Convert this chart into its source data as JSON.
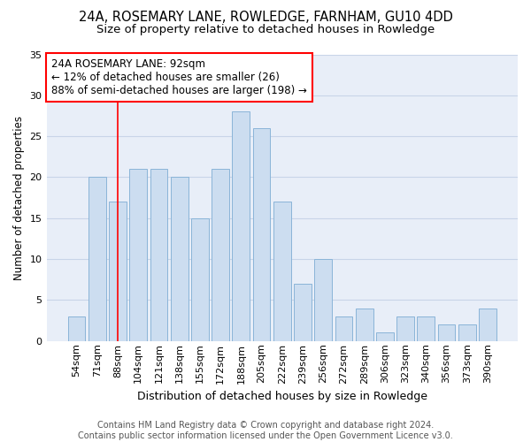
{
  "title1": "24A, ROSEMARY LANE, ROWLEDGE, FARNHAM, GU10 4DD",
  "title2": "Size of property relative to detached houses in Rowledge",
  "xlabel": "Distribution of detached houses by size in Rowledge",
  "ylabel": "Number of detached properties",
  "categories": [
    "54sqm",
    "71sqm",
    "88sqm",
    "104sqm",
    "121sqm",
    "138sqm",
    "155sqm",
    "172sqm",
    "188sqm",
    "205sqm",
    "222sqm",
    "239sqm",
    "256sqm",
    "272sqm",
    "289sqm",
    "306sqm",
    "323sqm",
    "340sqm",
    "356sqm",
    "373sqm",
    "390sqm"
  ],
  "values": [
    3,
    20,
    17,
    21,
    21,
    20,
    15,
    21,
    28,
    26,
    17,
    7,
    10,
    3,
    4,
    1,
    3,
    3,
    2,
    2,
    4
  ],
  "bar_color": "#ccddf0",
  "bar_edge_color": "#8ab4d8",
  "grid_color": "#c8d4e8",
  "background_color": "#e8eef8",
  "annotation_text": "24A ROSEMARY LANE: 92sqm\n← 12% of detached houses are smaller (26)\n88% of semi-detached houses are larger (198) →",
  "annotation_box_color": "white",
  "annotation_box_edge": "red",
  "vline_color": "red",
  "ylim": [
    0,
    35
  ],
  "yticks": [
    0,
    5,
    10,
    15,
    20,
    25,
    30,
    35
  ],
  "footer": "Contains HM Land Registry data © Crown copyright and database right 2024.\nContains public sector information licensed under the Open Government Licence v3.0.",
  "title1_fontsize": 10.5,
  "title2_fontsize": 9.5,
  "xlabel_fontsize": 9,
  "ylabel_fontsize": 8.5,
  "tick_fontsize": 8,
  "annotation_fontsize": 8.5,
  "footer_fontsize": 7
}
